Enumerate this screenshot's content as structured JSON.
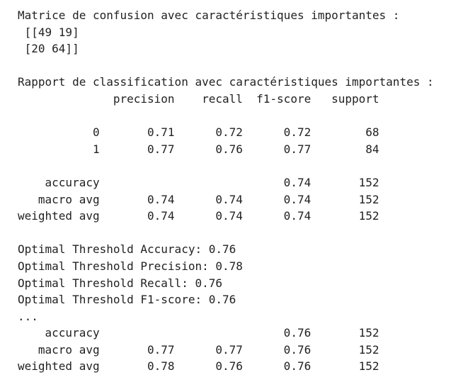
{
  "output": {
    "lines": [
      "Matrice de confusion avec caractéristiques importantes :",
      " [[49 19]",
      " [20 64]]",
      "",
      "Rapport de classification avec caractéristiques importantes :",
      "              precision    recall  f1-score   support",
      "",
      "           0       0.71      0.72      0.72        68",
      "           1       0.77      0.76      0.77        84",
      "",
      "    accuracy                           0.74       152",
      "   macro avg       0.74      0.74      0.74       152",
      "weighted avg       0.74      0.74      0.74       152",
      "",
      "Optimal Threshold Accuracy: 0.76",
      "Optimal Threshold Precision: 0.78",
      "Optimal Threshold Recall: 0.76",
      "Optimal Threshold F1-score: 0.76",
      "...",
      "    accuracy                           0.76       152",
      "   macro avg       0.77      0.77      0.76       152",
      "weighted avg       0.78      0.76      0.76       152"
    ]
  }
}
